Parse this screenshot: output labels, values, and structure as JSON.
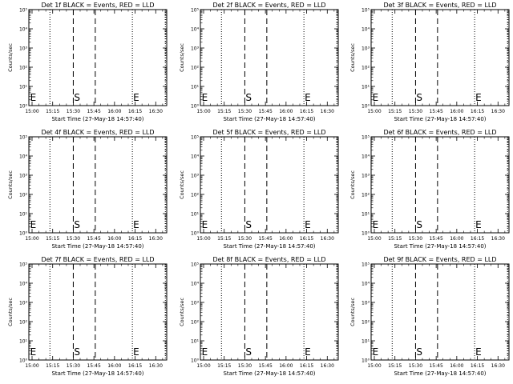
{
  "chart_data": [
    {
      "type": "line",
      "title": "Det 1f BLACK = Events, RED = LLD",
      "ylabel": "Counts/sec",
      "xlabel": "Start Time (27-May-18 14:57:40)",
      "x_ticks": [
        "15:00",
        "15:15",
        "15:30",
        "15:45",
        "16:00",
        "16:15",
        "16:30"
      ],
      "y_ticks": [
        "10⁰",
        "10¹",
        "10²",
        "10³",
        "10⁴",
        "10⁵"
      ],
      "ylim": [
        1,
        100000
      ],
      "xlim": [
        "14:57:40",
        "16:38"
      ],
      "markers": [
        {
          "label": "E",
          "time": "14:58"
        },
        {
          "label": "S",
          "time": "15:30"
        },
        {
          "label": "E",
          "time": "16:13"
        }
      ],
      "dotted_lines": [
        "15:13",
        "16:13"
      ],
      "dashed_lines": [
        "15:30",
        "15:46"
      ],
      "dotted_end": "16:37",
      "series": []
    },
    {
      "type": "line",
      "title": "Det 2f BLACK = Events, RED = LLD",
      "ylabel": "Counts/sec",
      "xlabel": "Start Time (27-May-18 14:57:40)",
      "x_ticks": [
        "15:00",
        "15:15",
        "15:30",
        "15:45",
        "16:00",
        "16:15",
        "16:30"
      ],
      "y_ticks": [
        "10⁰",
        "10¹",
        "10²",
        "10³",
        "10⁴",
        "10⁵"
      ],
      "ylim": [
        1,
        100000
      ],
      "xlim": [
        "14:57:40",
        "16:38"
      ],
      "markers": [
        {
          "label": "E",
          "time": "14:58"
        },
        {
          "label": "S",
          "time": "15:30"
        },
        {
          "label": "E",
          "time": "16:13"
        }
      ],
      "dotted_lines": [
        "15:13",
        "16:13"
      ],
      "dashed_lines": [
        "15:30",
        "15:46"
      ],
      "dotted_end": "16:37",
      "series": []
    },
    {
      "type": "line",
      "title": "Det 3f BLACK = Events, RED = LLD",
      "ylabel": "Counts/sec",
      "xlabel": "Start Time (27-May-18 14:57:40)",
      "x_ticks": [
        "15:00",
        "15:15",
        "15:30",
        "15:45",
        "16:00",
        "16:15",
        "16:30"
      ],
      "y_ticks": [
        "10⁰",
        "10¹",
        "10²",
        "10³",
        "10⁴",
        "10⁵"
      ],
      "ylim": [
        1,
        100000
      ],
      "xlim": [
        "14:57:40",
        "16:38"
      ],
      "markers": [
        {
          "label": "E",
          "time": "14:58"
        },
        {
          "label": "S",
          "time": "15:30"
        },
        {
          "label": "E",
          "time": "16:13"
        }
      ],
      "dotted_lines": [
        "15:13",
        "16:13"
      ],
      "dashed_lines": [
        "15:30",
        "15:46"
      ],
      "dotted_end": "16:37",
      "series": []
    },
    {
      "type": "line",
      "title": "Det 4f BLACK = Events, RED = LLD",
      "ylabel": "Counts/sec",
      "xlabel": "Start Time (27-May-18 14:57:40)",
      "x_ticks": [
        "15:00",
        "15:15",
        "15:30",
        "15:45",
        "16:00",
        "16:15",
        "16:30"
      ],
      "y_ticks": [
        "10⁰",
        "10¹",
        "10²",
        "10³",
        "10⁴",
        "10⁵"
      ],
      "ylim": [
        1,
        100000
      ],
      "xlim": [
        "14:57:40",
        "16:38"
      ],
      "markers": [
        {
          "label": "E",
          "time": "14:58"
        },
        {
          "label": "S",
          "time": "15:30"
        },
        {
          "label": "E",
          "time": "16:13"
        }
      ],
      "dotted_lines": [
        "15:13",
        "16:13"
      ],
      "dashed_lines": [
        "15:30",
        "15:46"
      ],
      "dotted_end": "16:37",
      "series": []
    },
    {
      "type": "line",
      "title": "Det 5f BLACK = Events, RED = LLD",
      "ylabel": "Counts/sec",
      "xlabel": "Start Time (27-May-18 14:57:40)",
      "x_ticks": [
        "15:00",
        "15:15",
        "15:30",
        "15:45",
        "16:00",
        "16:15",
        "16:30"
      ],
      "y_ticks": [
        "10⁰",
        "10¹",
        "10²",
        "10³",
        "10⁴",
        "10⁵"
      ],
      "ylim": [
        1,
        100000
      ],
      "xlim": [
        "14:57:40",
        "16:38"
      ],
      "markers": [
        {
          "label": "E",
          "time": "14:58"
        },
        {
          "label": "S",
          "time": "15:30"
        },
        {
          "label": "E",
          "time": "16:13"
        }
      ],
      "dotted_lines": [
        "15:13",
        "16:13"
      ],
      "dashed_lines": [
        "15:30",
        "15:46"
      ],
      "dotted_end": "16:37",
      "series": []
    },
    {
      "type": "line",
      "title": "Det 6f BLACK = Events, RED = LLD",
      "ylabel": "Counts/sec",
      "xlabel": "Start Time (27-May-18 14:57:40)",
      "x_ticks": [
        "15:00",
        "15:15",
        "15:30",
        "15:45",
        "16:00",
        "16:15",
        "16:30"
      ],
      "y_ticks": [
        "10⁰",
        "10¹",
        "10²",
        "10³",
        "10⁴",
        "10⁵"
      ],
      "ylim": [
        1,
        100000
      ],
      "xlim": [
        "14:57:40",
        "16:38"
      ],
      "markers": [
        {
          "label": "E",
          "time": "14:58"
        },
        {
          "label": "S",
          "time": "15:30"
        },
        {
          "label": "E",
          "time": "16:13"
        }
      ],
      "dotted_lines": [
        "15:13",
        "16:13"
      ],
      "dashed_lines": [
        "15:30",
        "15:46"
      ],
      "dotted_end": "16:37",
      "series": []
    },
    {
      "type": "line",
      "title": "Det 7f BLACK = Events, RED = LLD",
      "ylabel": "Counts/sec",
      "xlabel": "Start Time (27-May-18 14:57:40)",
      "x_ticks": [
        "15:00",
        "15:15",
        "15:30",
        "15:45",
        "16:00",
        "16:15",
        "16:30"
      ],
      "y_ticks": [
        "10⁰",
        "10¹",
        "10²",
        "10³",
        "10⁴",
        "10⁵"
      ],
      "ylim": [
        1,
        100000
      ],
      "xlim": [
        "14:57:40",
        "16:38"
      ],
      "markers": [
        {
          "label": "E",
          "time": "14:58"
        },
        {
          "label": "S",
          "time": "15:30"
        },
        {
          "label": "E",
          "time": "16:13"
        }
      ],
      "dotted_lines": [
        "15:13",
        "16:13"
      ],
      "dashed_lines": [
        "15:30",
        "15:46"
      ],
      "dotted_end": "16:37",
      "series": []
    },
    {
      "type": "line",
      "title": "Det 8f BLACK = Events, RED = LLD",
      "ylabel": "Counts/sec",
      "xlabel": "Start Time (27-May-18 14:57:40)",
      "x_ticks": [
        "15:00",
        "15:15",
        "15:30",
        "15:45",
        "16:00",
        "16:15",
        "16:30"
      ],
      "y_ticks": [
        "10⁰",
        "10¹",
        "10²",
        "10³",
        "10⁴",
        "10⁵"
      ],
      "ylim": [
        1,
        100000
      ],
      "xlim": [
        "14:57:40",
        "16:38"
      ],
      "markers": [
        {
          "label": "E",
          "time": "14:58"
        },
        {
          "label": "S",
          "time": "15:30"
        },
        {
          "label": "E",
          "time": "16:13"
        }
      ],
      "dotted_lines": [
        "15:13",
        "16:13"
      ],
      "dashed_lines": [
        "15:30",
        "15:46"
      ],
      "dotted_end": "16:37",
      "series": []
    },
    {
      "type": "line",
      "title": "Det 9f BLACK = Events, RED = LLD",
      "ylabel": "Counts/sec",
      "xlabel": "Start Time (27-May-18 14:57:40)",
      "x_ticks": [
        "15:00",
        "15:15",
        "15:30",
        "15:45",
        "16:00",
        "16:15",
        "16:30"
      ],
      "y_ticks": [
        "10⁰",
        "10¹",
        "10²",
        "10³",
        "10⁴",
        "10⁵"
      ],
      "ylim": [
        1,
        100000
      ],
      "xlim": [
        "14:57:40",
        "16:38"
      ],
      "markers": [
        {
          "label": "E",
          "time": "14:58"
        },
        {
          "label": "S",
          "time": "15:30"
        },
        {
          "label": "E",
          "time": "16:13"
        }
      ],
      "dotted_lines": [
        "15:13",
        "16:13"
      ],
      "dashed_lines": [
        "15:30",
        "15:46"
      ],
      "dotted_end": "16:37",
      "series": []
    }
  ]
}
